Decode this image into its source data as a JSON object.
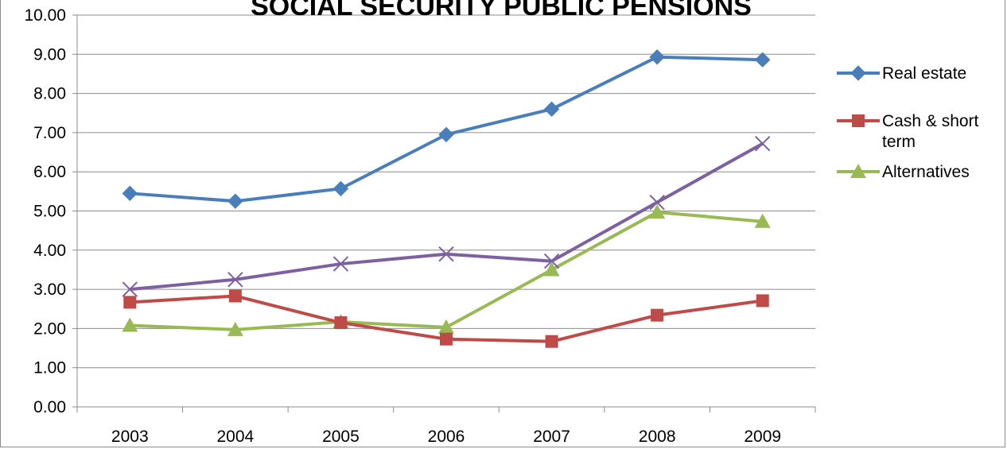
{
  "chart_data": {
    "type": "line",
    "title": "SOCIAL SECURITY PUBLIC PENSIONS",
    "categories": [
      "2003",
      "2004",
      "2005",
      "2006",
      "2007",
      "2008",
      "2009"
    ],
    "ylim": [
      0,
      10
    ],
    "yticks": [
      "0.00",
      "1.00",
      "2.00",
      "3.00",
      "4.00",
      "5.00",
      "6.00",
      "7.00",
      "8.00",
      "9.00",
      "10.00"
    ],
    "grid": true,
    "legend_position": "right",
    "series": [
      {
        "name": "Real estate",
        "values": [
          5.45,
          5.25,
          5.57,
          6.95,
          7.6,
          8.93,
          8.86
        ],
        "color": "#4a7ebb",
        "marker": "diamond"
      },
      {
        "name": "Cash & short term",
        "values": [
          2.67,
          2.83,
          2.15,
          1.73,
          1.67,
          2.34,
          2.71
        ],
        "color": "#be4b48",
        "marker": "square"
      },
      {
        "name": "Alternatives",
        "values": [
          2.08,
          1.97,
          2.17,
          2.03,
          3.5,
          4.97,
          4.73
        ],
        "color": "#98b954",
        "marker": "triangle"
      },
      {
        "values": [
          3.0,
          3.25,
          3.65,
          3.9,
          3.72,
          5.22,
          6.72
        ],
        "color": "#7d60a0",
        "marker": "x"
      }
    ]
  }
}
